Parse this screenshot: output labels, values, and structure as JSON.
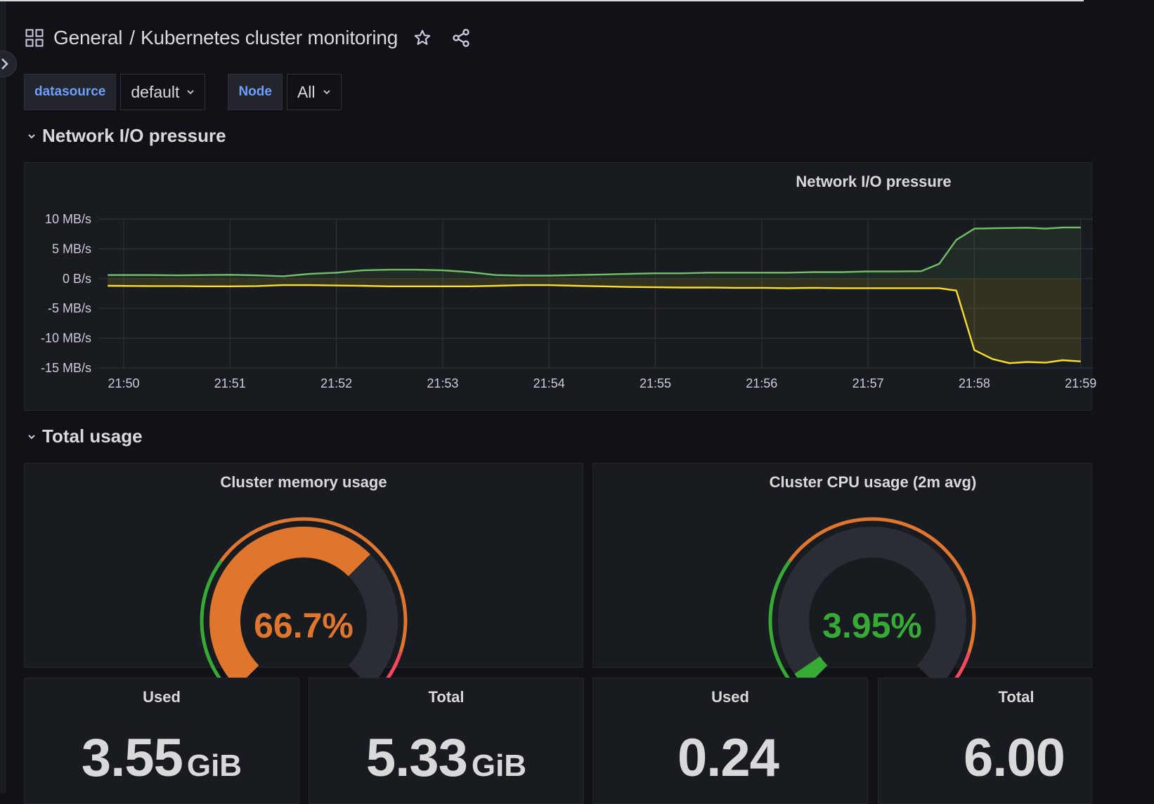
{
  "header": {
    "folder": "General",
    "separator": "/",
    "dashboard_title": "Kubernetes cluster monitoring"
  },
  "variables": [
    {
      "label": "datasource",
      "value": "default"
    },
    {
      "label": "Node",
      "value": "All"
    }
  ],
  "rows": {
    "network": "Network I/O pressure",
    "usage": "Total usage"
  },
  "network_panel": {
    "title": "Network I/O pressure"
  },
  "memory_gauge": {
    "title": "Cluster memory usage",
    "value_text": "66.7%",
    "value": 66.7,
    "color": "#e0752d"
  },
  "cpu_gauge": {
    "title": "Cluster CPU usage (2m avg)",
    "value_text": "3.95%",
    "value": 3.95,
    "color": "#37a935"
  },
  "stats": [
    {
      "title": "Used",
      "value": "3.55",
      "unit": "GiB"
    },
    {
      "title": "Total",
      "value": "5.33",
      "unit": "GiB"
    },
    {
      "title": "Used",
      "value": "0.24",
      "unit": ""
    },
    {
      "title": "Total",
      "value": "6.00",
      "unit": ""
    }
  ],
  "chart_data": {
    "type": "area",
    "title": "Network I/O pressure",
    "x_tick_labels": [
      "21:50",
      "21:51",
      "21:52",
      "21:53",
      "21:54",
      "21:55",
      "21:56",
      "21:57",
      "21:58",
      "21:59"
    ],
    "y_tick_labels": [
      "10 MB/s",
      "5 MB/s",
      "0 B/s",
      "-5 MB/s",
      "-10 MB/s",
      "-15 MB/s"
    ],
    "y_ticks": [
      10,
      5,
      0,
      -5,
      -10,
      -15
    ],
    "ylim": [
      -15,
      10
    ],
    "x_minutes": [
      49.85,
      50.25,
      50.5,
      50.75,
      51.0,
      51.25,
      51.5,
      51.75,
      52.0,
      52.25,
      52.5,
      52.75,
      53.0,
      53.25,
      53.5,
      53.75,
      54.0,
      54.25,
      54.5,
      54.75,
      55.0,
      55.25,
      55.5,
      55.75,
      56.0,
      56.25,
      56.5,
      56.75,
      57.0,
      57.25,
      57.5,
      57.67,
      57.83,
      58.0,
      58.17,
      58.33,
      58.5,
      58.67,
      58.83,
      59.0
    ],
    "grid": true,
    "series": [
      {
        "color": "#73bf69",
        "values": [
          0.6,
          0.6,
          0.55,
          0.6,
          0.65,
          0.55,
          0.4,
          0.8,
          1.0,
          1.4,
          1.5,
          1.5,
          1.4,
          1.1,
          0.6,
          0.5,
          0.5,
          0.6,
          0.7,
          0.8,
          0.9,
          0.9,
          1.0,
          1.0,
          1.0,
          1.0,
          1.1,
          1.1,
          1.2,
          1.2,
          1.25,
          2.5,
          6.5,
          8.4,
          8.45,
          8.5,
          8.55,
          8.4,
          8.6,
          8.6
        ]
      },
      {
        "color": "#fade2a",
        "values": [
          -1.2,
          -1.25,
          -1.25,
          -1.3,
          -1.3,
          -1.25,
          -1.1,
          -1.1,
          -1.15,
          -1.2,
          -1.3,
          -1.3,
          -1.3,
          -1.3,
          -1.2,
          -1.1,
          -1.1,
          -1.2,
          -1.3,
          -1.4,
          -1.45,
          -1.5,
          -1.5,
          -1.55,
          -1.55,
          -1.6,
          -1.55,
          -1.6,
          -1.6,
          -1.6,
          -1.6,
          -1.6,
          -2.0,
          -12.0,
          -13.5,
          -14.2,
          -14.0,
          -14.1,
          -13.7,
          -13.9
        ]
      }
    ]
  }
}
